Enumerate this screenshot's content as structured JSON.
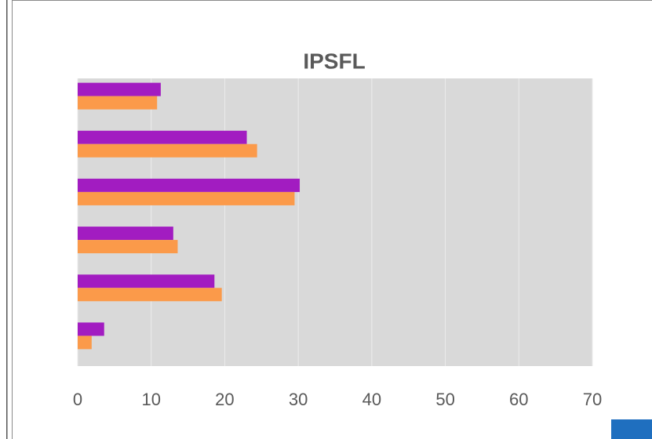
{
  "chart_data": {
    "type": "hbar",
    "title": "IPSFL",
    "categories": [
      null,
      null,
      null,
      null,
      null,
      null
    ],
    "series": [
      {
        "color": "#a21cc1",
        "values": [
          11.3,
          23.0,
          30.2,
          13.0,
          18.6,
          3.6
        ]
      },
      {
        "color": "#fb9a4a",
        "values": [
          10.8,
          24.4,
          29.5,
          13.6,
          19.6,
          1.9
        ]
      }
    ],
    "xlim": [
      0,
      70
    ],
    "xticks": [
      0,
      10,
      20,
      30,
      40,
      50,
      60,
      70
    ],
    "grid": true
  }
}
